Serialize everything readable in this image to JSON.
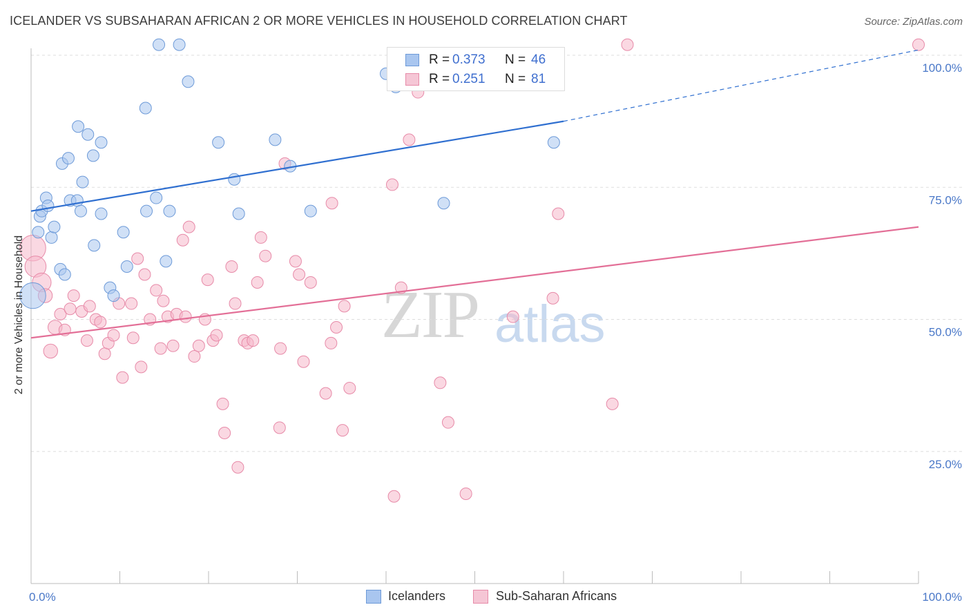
{
  "title": "ICELANDER VS SUBSAHARAN AFRICAN 2 OR MORE VEHICLES IN HOUSEHOLD CORRELATION CHART",
  "source": "Source: ZipAtlas.com",
  "watermark": {
    "zip": "ZIP",
    "atlas": "atlas"
  },
  "legend_top": [
    {
      "r_label": "R =",
      "r_value": "0.373",
      "n_label": "N =",
      "n_value": "46"
    },
    {
      "r_label": "R =",
      "r_value": "0.251",
      "n_label": "N =",
      "n_value": "81"
    }
  ],
  "legend_bottom": [
    {
      "label": "Icelanders"
    },
    {
      "label": "Sub-Saharan Africans"
    }
  ],
  "colors": {
    "blue_fill": "#a9c6ef",
    "blue_stroke": "#6d9ad8",
    "blue_line": "#2f6fd0",
    "pink_fill": "#f5b8cb",
    "pink_stroke": "#e78aa8",
    "pink_line": "#e36f97",
    "grid": "#dddddd",
    "tick_label": "#4a78c8"
  },
  "chart_data": {
    "type": "scatter",
    "title": "ICELANDER VS SUBSAHARAN AFRICAN 2 OR MORE VEHICLES IN HOUSEHOLD CORRELATION CHART",
    "xlabel": "",
    "ylabel": "2 or more Vehicles in Household",
    "xlim": [
      0,
      100
    ],
    "ylim": [
      0,
      105
    ],
    "x_tick_labels": [
      "0.0%",
      "100.0%"
    ],
    "y_ticks": [
      25,
      50,
      75,
      100
    ],
    "y_tick_labels": [
      "25.0%",
      "50.0%",
      "75.0%",
      "100.0%"
    ],
    "grid": true,
    "series": [
      {
        "name": "Icelanders",
        "r": 0.373,
        "n": 46,
        "trend": {
          "x": [
            0,
            60
          ],
          "y": [
            70.5,
            87.5
          ],
          "dashed_to": {
            "x": 100,
            "y": 101
          }
        },
        "points": [
          {
            "x": 0.2,
            "y": 54.5,
            "s": 2.2
          },
          {
            "x": 0.8,
            "y": 66.5,
            "s": 1
          },
          {
            "x": 1.0,
            "y": 69.5,
            "s": 1
          },
          {
            "x": 1.2,
            "y": 70.5,
            "s": 1
          },
          {
            "x": 1.7,
            "y": 73.0,
            "s": 1
          },
          {
            "x": 1.9,
            "y": 71.5,
            "s": 1
          },
          {
            "x": 2.3,
            "y": 65.5,
            "s": 1
          },
          {
            "x": 2.6,
            "y": 67.5,
            "s": 1
          },
          {
            "x": 3.3,
            "y": 59.5,
            "s": 1
          },
          {
            "x": 3.8,
            "y": 58.5,
            "s": 1
          },
          {
            "x": 3.5,
            "y": 79.5,
            "s": 1
          },
          {
            "x": 4.2,
            "y": 80.5,
            "s": 1
          },
          {
            "x": 4.4,
            "y": 72.5,
            "s": 1
          },
          {
            "x": 5.2,
            "y": 72.5,
            "s": 1
          },
          {
            "x": 5.3,
            "y": 86.5,
            "s": 1
          },
          {
            "x": 5.6,
            "y": 70.5,
            "s": 1
          },
          {
            "x": 5.8,
            "y": 76.0,
            "s": 1
          },
          {
            "x": 6.4,
            "y": 85.0,
            "s": 1
          },
          {
            "x": 7.0,
            "y": 81.0,
            "s": 1
          },
          {
            "x": 7.1,
            "y": 64.0,
            "s": 1
          },
          {
            "x": 7.9,
            "y": 83.5,
            "s": 1
          },
          {
            "x": 7.9,
            "y": 70.0,
            "s": 1
          },
          {
            "x": 8.9,
            "y": 56.0,
            "s": 1
          },
          {
            "x": 9.3,
            "y": 54.5,
            "s": 1
          },
          {
            "x": 10.4,
            "y": 66.5,
            "s": 1
          },
          {
            "x": 10.8,
            "y": 60.0,
            "s": 1
          },
          {
            "x": 12.9,
            "y": 90.0,
            "s": 1
          },
          {
            "x": 13.0,
            "y": 70.5,
            "s": 1
          },
          {
            "x": 14.1,
            "y": 73.0,
            "s": 1
          },
          {
            "x": 15.2,
            "y": 61.0,
            "s": 1
          },
          {
            "x": 15.6,
            "y": 70.5,
            "s": 1
          },
          {
            "x": 14.4,
            "y": 102.0,
            "s": 1
          },
          {
            "x": 16.7,
            "y": 102.0,
            "s": 1
          },
          {
            "x": 17.7,
            "y": 95.0,
            "s": 1
          },
          {
            "x": 21.1,
            "y": 83.5,
            "s": 1
          },
          {
            "x": 22.9,
            "y": 76.5,
            "s": 1
          },
          {
            "x": 23.4,
            "y": 70.0,
            "s": 1
          },
          {
            "x": 27.5,
            "y": 84.0,
            "s": 1
          },
          {
            "x": 29.2,
            "y": 79.0,
            "s": 1
          },
          {
            "x": 31.5,
            "y": 70.5,
            "s": 1
          },
          {
            "x": 40.0,
            "y": 96.5,
            "s": 1
          },
          {
            "x": 41.4,
            "y": 95.5,
            "s": 1
          },
          {
            "x": 42.2,
            "y": 97.0,
            "s": 1
          },
          {
            "x": 41.1,
            "y": 94.0,
            "s": 1
          },
          {
            "x": 46.5,
            "y": 72.0,
            "s": 1
          },
          {
            "x": 58.9,
            "y": 83.5,
            "s": 1
          }
        ]
      },
      {
        "name": "Sub-Saharan Africans",
        "r": 0.251,
        "n": 81,
        "trend": {
          "x": [
            0,
            100
          ],
          "y": [
            46.5,
            67.5
          ]
        },
        "points": [
          {
            "x": 0.2,
            "y": 63.5,
            "s": 2.2
          },
          {
            "x": 0.5,
            "y": 60.0,
            "s": 1.8
          },
          {
            "x": 1.2,
            "y": 57.0,
            "s": 1.6
          },
          {
            "x": 1.6,
            "y": 54.5,
            "s": 1.2
          },
          {
            "x": 2.2,
            "y": 44.0,
            "s": 1.2
          },
          {
            "x": 2.7,
            "y": 48.5,
            "s": 1.2
          },
          {
            "x": 3.3,
            "y": 51.0,
            "s": 1
          },
          {
            "x": 3.8,
            "y": 48.0,
            "s": 1
          },
          {
            "x": 4.4,
            "y": 52.0,
            "s": 1
          },
          {
            "x": 4.8,
            "y": 54.5,
            "s": 1
          },
          {
            "x": 5.7,
            "y": 51.5,
            "s": 1
          },
          {
            "x": 6.3,
            "y": 46.0,
            "s": 1
          },
          {
            "x": 6.6,
            "y": 52.5,
            "s": 1
          },
          {
            "x": 7.3,
            "y": 50.0,
            "s": 1
          },
          {
            "x": 7.8,
            "y": 49.5,
            "s": 1
          },
          {
            "x": 8.3,
            "y": 43.5,
            "s": 1
          },
          {
            "x": 8.7,
            "y": 45.5,
            "s": 1
          },
          {
            "x": 9.3,
            "y": 47.0,
            "s": 1
          },
          {
            "x": 9.9,
            "y": 53.0,
            "s": 1
          },
          {
            "x": 10.3,
            "y": 39.0,
            "s": 1
          },
          {
            "x": 11.3,
            "y": 53.0,
            "s": 1
          },
          {
            "x": 11.5,
            "y": 46.5,
            "s": 1
          },
          {
            "x": 12.0,
            "y": 61.5,
            "s": 1
          },
          {
            "x": 12.4,
            "y": 41.0,
            "s": 1
          },
          {
            "x": 12.8,
            "y": 58.5,
            "s": 1
          },
          {
            "x": 13.4,
            "y": 50.0,
            "s": 1
          },
          {
            "x": 14.1,
            "y": 55.5,
            "s": 1
          },
          {
            "x": 14.6,
            "y": 44.5,
            "s": 1
          },
          {
            "x": 14.9,
            "y": 53.5,
            "s": 1
          },
          {
            "x": 15.4,
            "y": 50.5,
            "s": 1
          },
          {
            "x": 16.0,
            "y": 45.0,
            "s": 1
          },
          {
            "x": 16.4,
            "y": 51.0,
            "s": 1
          },
          {
            "x": 17.1,
            "y": 65.0,
            "s": 1
          },
          {
            "x": 17.4,
            "y": 50.5,
            "s": 1
          },
          {
            "x": 17.8,
            "y": 67.5,
            "s": 1
          },
          {
            "x": 18.4,
            "y": 43.0,
            "s": 1
          },
          {
            "x": 18.9,
            "y": 45.0,
            "s": 1
          },
          {
            "x": 19.6,
            "y": 50.0,
            "s": 1
          },
          {
            "x": 19.9,
            "y": 57.5,
            "s": 1
          },
          {
            "x": 20.5,
            "y": 46.0,
            "s": 1
          },
          {
            "x": 20.9,
            "y": 47.0,
            "s": 1
          },
          {
            "x": 21.6,
            "y": 34.0,
            "s": 1
          },
          {
            "x": 21.8,
            "y": 28.5,
            "s": 1
          },
          {
            "x": 22.6,
            "y": 60.0,
            "s": 1
          },
          {
            "x": 23.0,
            "y": 53.0,
            "s": 1
          },
          {
            "x": 23.3,
            "y": 22.0,
            "s": 1
          },
          {
            "x": 24.0,
            "y": 46.0,
            "s": 1
          },
          {
            "x": 24.4,
            "y": 45.5,
            "s": 1
          },
          {
            "x": 25.0,
            "y": 46.0,
            "s": 1
          },
          {
            "x": 25.5,
            "y": 57.0,
            "s": 1
          },
          {
            "x": 25.9,
            "y": 65.5,
            "s": 1
          },
          {
            "x": 26.4,
            "y": 62.0,
            "s": 1
          },
          {
            "x": 28.0,
            "y": 29.5,
            "s": 1
          },
          {
            "x": 28.1,
            "y": 44.5,
            "s": 1
          },
          {
            "x": 28.6,
            "y": 79.5,
            "s": 1
          },
          {
            "x": 29.8,
            "y": 61.0,
            "s": 1
          },
          {
            "x": 30.2,
            "y": 58.5,
            "s": 1
          },
          {
            "x": 30.7,
            "y": 42.0,
            "s": 1
          },
          {
            "x": 31.5,
            "y": 57.0,
            "s": 1
          },
          {
            "x": 33.2,
            "y": 36.0,
            "s": 1
          },
          {
            "x": 33.8,
            "y": 45.5,
            "s": 1
          },
          {
            "x": 33.9,
            "y": 72.0,
            "s": 1
          },
          {
            "x": 34.4,
            "y": 48.5,
            "s": 1
          },
          {
            "x": 35.1,
            "y": 29.0,
            "s": 1
          },
          {
            "x": 35.3,
            "y": 52.5,
            "s": 1
          },
          {
            "x": 35.9,
            "y": 37.0,
            "s": 1
          },
          {
            "x": 40.7,
            "y": 75.5,
            "s": 1
          },
          {
            "x": 40.9,
            "y": 16.5,
            "s": 1
          },
          {
            "x": 41.7,
            "y": 56.0,
            "s": 1
          },
          {
            "x": 42.6,
            "y": 84.0,
            "s": 1
          },
          {
            "x": 43.6,
            "y": 93.0,
            "s": 1
          },
          {
            "x": 46.1,
            "y": 38.0,
            "s": 1
          },
          {
            "x": 47.0,
            "y": 30.5,
            "s": 1
          },
          {
            "x": 49.0,
            "y": 17.0,
            "s": 1
          },
          {
            "x": 54.3,
            "y": 50.5,
            "s": 1
          },
          {
            "x": 58.8,
            "y": 54.0,
            "s": 1
          },
          {
            "x": 59.4,
            "y": 70.0,
            "s": 1
          },
          {
            "x": 65.5,
            "y": 34.0,
            "s": 1
          },
          {
            "x": 67.2,
            "y": 102.0,
            "s": 1
          },
          {
            "x": 100.0,
            "y": 102.0,
            "s": 1
          }
        ]
      }
    ]
  }
}
